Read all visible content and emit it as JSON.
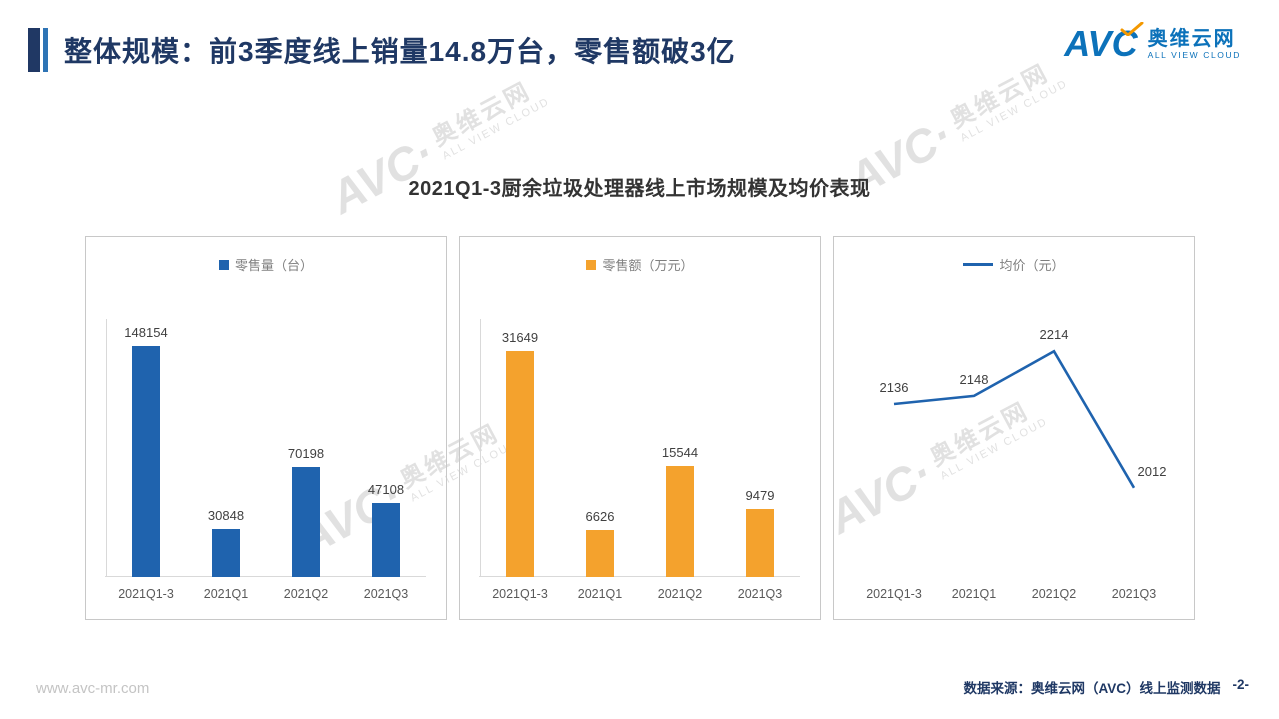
{
  "header": {
    "title": "整体规模：前3季度线上销量14.8万台，零售额破3亿"
  },
  "logo": {
    "brand": "AVC",
    "company_cn": "奥维云网",
    "company_en": "ALL VIEW CLOUD"
  },
  "watermark": {
    "brand": "AVC·",
    "company_cn": "奥维云网",
    "company_en": "ALL VIEW CLOUD"
  },
  "chart_title": "2021Q1-3厨余垃圾处理器线上市场规模及均价表现",
  "chart_data": [
    {
      "type": "bar",
      "legend": "零售量（台）",
      "categories": [
        "2021Q1-3",
        "2021Q1",
        "2021Q2",
        "2021Q3"
      ],
      "values": [
        148154,
        30848,
        70198,
        47108
      ],
      "color": "#1F63AE",
      "ylim": [
        0,
        160000
      ],
      "legend_position": "top",
      "grid": false
    },
    {
      "type": "bar",
      "legend": "零售额（万元）",
      "categories": [
        "2021Q1-3",
        "2021Q1",
        "2021Q2",
        "2021Q3"
      ],
      "values": [
        31649,
        6626,
        15544,
        9479
      ],
      "color": "#F4A22D",
      "ylim": [
        0,
        35000
      ],
      "legend_position": "top",
      "grid": false
    },
    {
      "type": "line",
      "legend": "均价（元）",
      "categories": [
        "2021Q1-3",
        "2021Q1",
        "2021Q2",
        "2021Q3"
      ],
      "values": [
        2136,
        2148,
        2214,
        2012
      ],
      "color": "#1F63AE",
      "ylim": [
        1880,
        2250
      ],
      "legend_position": "top",
      "grid": false
    }
  ],
  "footer": {
    "website": "www.avc-mr.com",
    "source": "数据来源：奥维云网（AVC）线上监测数据",
    "page_number": "-2-"
  }
}
